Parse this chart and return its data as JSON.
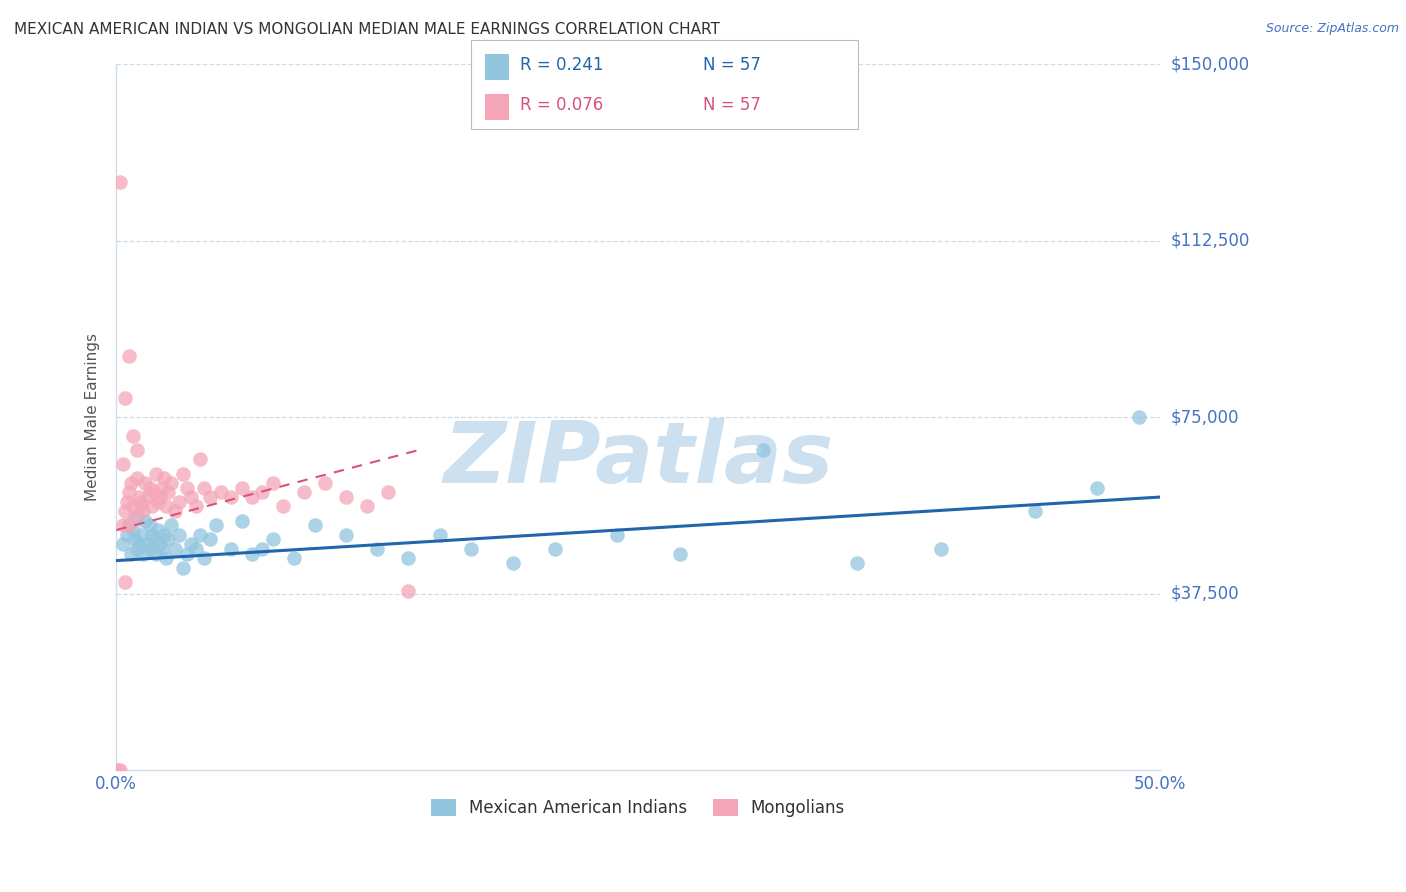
{
  "title": "MEXICAN AMERICAN INDIAN VS MONGOLIAN MEDIAN MALE EARNINGS CORRELATION CHART",
  "source": "Source: ZipAtlas.com",
  "ylabel": "Median Male Earnings",
  "xlim": [
    0.0,
    0.5
  ],
  "ylim": [
    0,
    150000
  ],
  "yticks": [
    0,
    37500,
    75000,
    112500,
    150000
  ],
  "ytick_labels": [
    "",
    "$37,500",
    "$75,000",
    "$112,500",
    "$150,000"
  ],
  "xtick_positions": [
    0.0,
    0.1,
    0.2,
    0.3,
    0.4,
    0.5
  ],
  "xtick_labels": [
    "0.0%",
    "",
    "",
    "",
    "",
    "50.0%"
  ],
  "legend_r_blue": "0.241",
  "legend_n_blue": "57",
  "legend_r_pink": "0.076",
  "legend_n_pink": "57",
  "legend_label_blue": "Mexican American Indians",
  "legend_label_pink": "Mongolians",
  "blue_dot_color": "#92c5de",
  "blue_line_color": "#2166ac",
  "pink_dot_color": "#f4a6b8",
  "pink_line_color": "#d6537a",
  "watermark_text": "ZIPatlas",
  "watermark_color": "#cce0f0",
  "title_color": "#333333",
  "ylabel_color": "#555555",
  "tick_label_color": "#4472c4",
  "grid_color": "#d0dce8",
  "source_color": "#4472c4",
  "bg_color": "#ffffff",
  "blue_trend_x": [
    0.0,
    0.5
  ],
  "blue_trend_y": [
    44500,
    58000
  ],
  "pink_trend_x": [
    0.0,
    0.145
  ],
  "pink_trend_y": [
    51000,
    68000
  ],
  "blue_x": [
    0.003,
    0.005,
    0.006,
    0.007,
    0.008,
    0.009,
    0.01,
    0.01,
    0.011,
    0.012,
    0.013,
    0.014,
    0.015,
    0.016,
    0.016,
    0.017,
    0.018,
    0.019,
    0.02,
    0.021,
    0.022,
    0.023,
    0.024,
    0.025,
    0.026,
    0.028,
    0.03,
    0.032,
    0.034,
    0.036,
    0.038,
    0.04,
    0.042,
    0.045,
    0.048,
    0.055,
    0.06,
    0.065,
    0.07,
    0.075,
    0.085,
    0.095,
    0.11,
    0.125,
    0.14,
    0.155,
    0.17,
    0.19,
    0.21,
    0.24,
    0.27,
    0.31,
    0.355,
    0.395,
    0.44,
    0.47,
    0.49
  ],
  "blue_y": [
    48000,
    50000,
    52000,
    46000,
    51000,
    49000,
    47000,
    54000,
    48000,
    50000,
    46000,
    53000,
    48000,
    47000,
    52000,
    50000,
    49000,
    46000,
    51000,
    48000,
    47000,
    50000,
    45000,
    49000,
    52000,
    47000,
    50000,
    43000,
    46000,
    48000,
    47000,
    50000,
    45000,
    49000,
    52000,
    47000,
    53000,
    46000,
    47000,
    49000,
    45000,
    52000,
    50000,
    47000,
    45000,
    50000,
    47000,
    44000,
    47000,
    50000,
    46000,
    68000,
    44000,
    47000,
    55000,
    60000,
    75000
  ],
  "pink_x": [
    0.001,
    0.002,
    0.003,
    0.004,
    0.005,
    0.006,
    0.007,
    0.008,
    0.009,
    0.01,
    0.011,
    0.012,
    0.013,
    0.014,
    0.015,
    0.016,
    0.017,
    0.018,
    0.019,
    0.02,
    0.021,
    0.022,
    0.023,
    0.024,
    0.025,
    0.026,
    0.028,
    0.03,
    0.032,
    0.034,
    0.036,
    0.038,
    0.04,
    0.042,
    0.045,
    0.05,
    0.055,
    0.06,
    0.065,
    0.07,
    0.075,
    0.08,
    0.09,
    0.1,
    0.11,
    0.12,
    0.13,
    0.14,
    0.002,
    0.004,
    0.006,
    0.008,
    0.01,
    0.012,
    0.004,
    0.006,
    0.003
  ],
  "pink_y": [
    0,
    0,
    52000,
    55000,
    57000,
    59000,
    61000,
    56000,
    54000,
    62000,
    58000,
    57000,
    55000,
    61000,
    58000,
    60000,
    56000,
    59000,
    63000,
    57000,
    58000,
    60000,
    62000,
    56000,
    59000,
    61000,
    55000,
    57000,
    63000,
    60000,
    58000,
    56000,
    66000,
    60000,
    58000,
    59000,
    58000,
    60000,
    58000,
    59000,
    61000,
    56000,
    59000,
    61000,
    58000,
    56000,
    59000,
    38000,
    125000,
    79000,
    88000,
    71000,
    68000,
    56000,
    40000,
    52000,
    65000
  ]
}
